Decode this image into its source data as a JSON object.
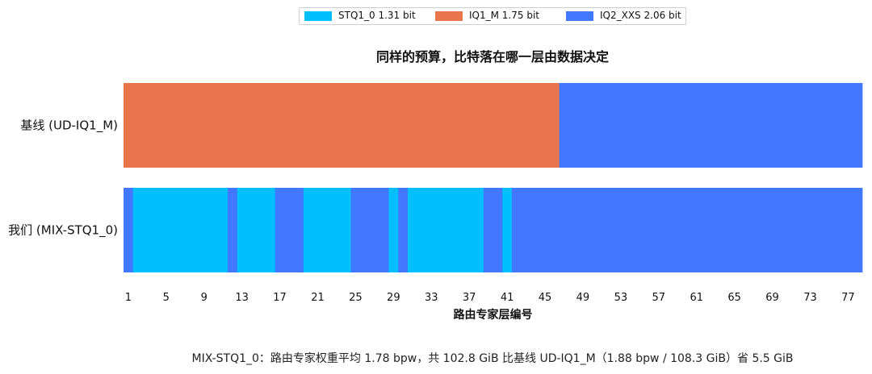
{
  "chart_data": {
    "type": "bar",
    "title": "同样的预算，比特落在哪一层由数据决定",
    "xlabel": "路由专家层编号",
    "ylabel": "",
    "xlim": [
      0,
      78
    ],
    "x_ticks": [
      1,
      5,
      9,
      13,
      17,
      21,
      25,
      29,
      33,
      37,
      41,
      45,
      49,
      53,
      57,
      61,
      65,
      69,
      73,
      77
    ],
    "legend_position": "top-center",
    "legend": [
      {
        "key": "STQ1_0",
        "label": "STQ1_0  1.31 bit",
        "color": "#00bfff"
      },
      {
        "key": "IQ1_M",
        "label": "IQ1_M  1.75 bit",
        "color": "#e8754c"
      },
      {
        "key": "IQ2_XXS",
        "label": "IQ2_XXS  2.06 bit",
        "color": "#4178ff"
      }
    ],
    "rows": [
      {
        "label": "基线 (UD-IQ1_M)",
        "segments": [
          {
            "from": 0,
            "to": 46,
            "type": "IQ1_M"
          },
          {
            "from": 46,
            "to": 78,
            "type": "IQ2_XXS"
          }
        ]
      },
      {
        "label": "我们 (MIX-STQ1_0)",
        "segments": [
          {
            "from": 0,
            "to": 1,
            "type": "IQ2_XXS"
          },
          {
            "from": 1,
            "to": 11,
            "type": "STQ1_0"
          },
          {
            "from": 11,
            "to": 12,
            "type": "IQ2_XXS"
          },
          {
            "from": 12,
            "to": 16,
            "type": "STQ1_0"
          },
          {
            "from": 16,
            "to": 19,
            "type": "IQ2_XXS"
          },
          {
            "from": 19,
            "to": 24,
            "type": "STQ1_0"
          },
          {
            "from": 24,
            "to": 28,
            "type": "IQ2_XXS"
          },
          {
            "from": 28,
            "to": 29,
            "type": "STQ1_0"
          },
          {
            "from": 29,
            "to": 30,
            "type": "IQ2_XXS"
          },
          {
            "from": 30,
            "to": 38,
            "type": "STQ1_0"
          },
          {
            "from": 38,
            "to": 40,
            "type": "IQ2_XXS"
          },
          {
            "from": 40,
            "to": 41,
            "type": "STQ1_0"
          },
          {
            "from": 41,
            "to": 78,
            "type": "IQ2_XXS"
          }
        ]
      }
    ]
  },
  "footnote": "MIX-STQ1_0：路由专家权重平均 1.78 bpw，共 102.8 GiB    比基线 UD-IQ1_M（1.88 bpw / 108.3 GiB）省 5.5 GiB"
}
